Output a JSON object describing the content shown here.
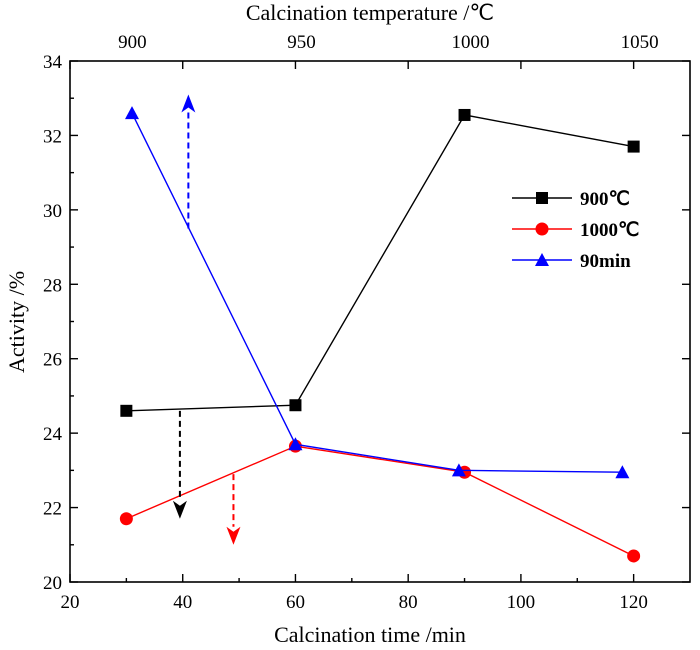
{
  "chart_data": {
    "type": "line",
    "xlabel": "Calcination time /min",
    "ylabel": "Activity /%",
    "x2label": "Calcination temperature /℃",
    "xlim": [
      20,
      130
    ],
    "ylim": [
      20,
      34
    ],
    "x_ticks": [
      20,
      40,
      60,
      80,
      100,
      120
    ],
    "y_ticks": [
      20,
      22,
      24,
      26,
      28,
      30,
      32,
      34
    ],
    "x2_ticks": [
      {
        "label": "900",
        "at": 30
      },
      {
        "label": "950",
        "at": 60
      },
      {
        "label": "1000",
        "at": 90
      },
      {
        "label": "1050",
        "at": 120
      }
    ],
    "series": [
      {
        "name": "900℃",
        "color": "#000000",
        "marker": "square",
        "points": [
          [
            30,
            24.6
          ],
          [
            60,
            24.75
          ],
          [
            90,
            32.55
          ],
          [
            120,
            31.7
          ]
        ]
      },
      {
        "name": "1000℃",
        "color": "#ff0000",
        "marker": "circle",
        "points": [
          [
            30,
            21.7
          ],
          [
            60,
            23.65
          ],
          [
            90,
            22.95
          ],
          [
            120,
            20.7
          ]
        ]
      },
      {
        "name": "90min",
        "color": "#0000ff",
        "marker": "triangle",
        "points": [
          [
            31,
            32.6
          ],
          [
            60,
            23.7
          ],
          [
            89,
            23.0
          ],
          [
            118,
            22.95
          ]
        ]
      }
    ],
    "annotations": [
      {
        "type": "arrow",
        "color": "#0000ff",
        "x": 41,
        "from_y": 29.5,
        "to_y": 33.1
      },
      {
        "type": "arrow",
        "color": "#000000",
        "x": 39.5,
        "from_y": 24.6,
        "to_y": 21.7
      },
      {
        "type": "arrow",
        "color": "#ff0000",
        "x": 49,
        "from_y": 22.9,
        "to_y": 21.0
      }
    ],
    "legend_position": "right-upper"
  }
}
